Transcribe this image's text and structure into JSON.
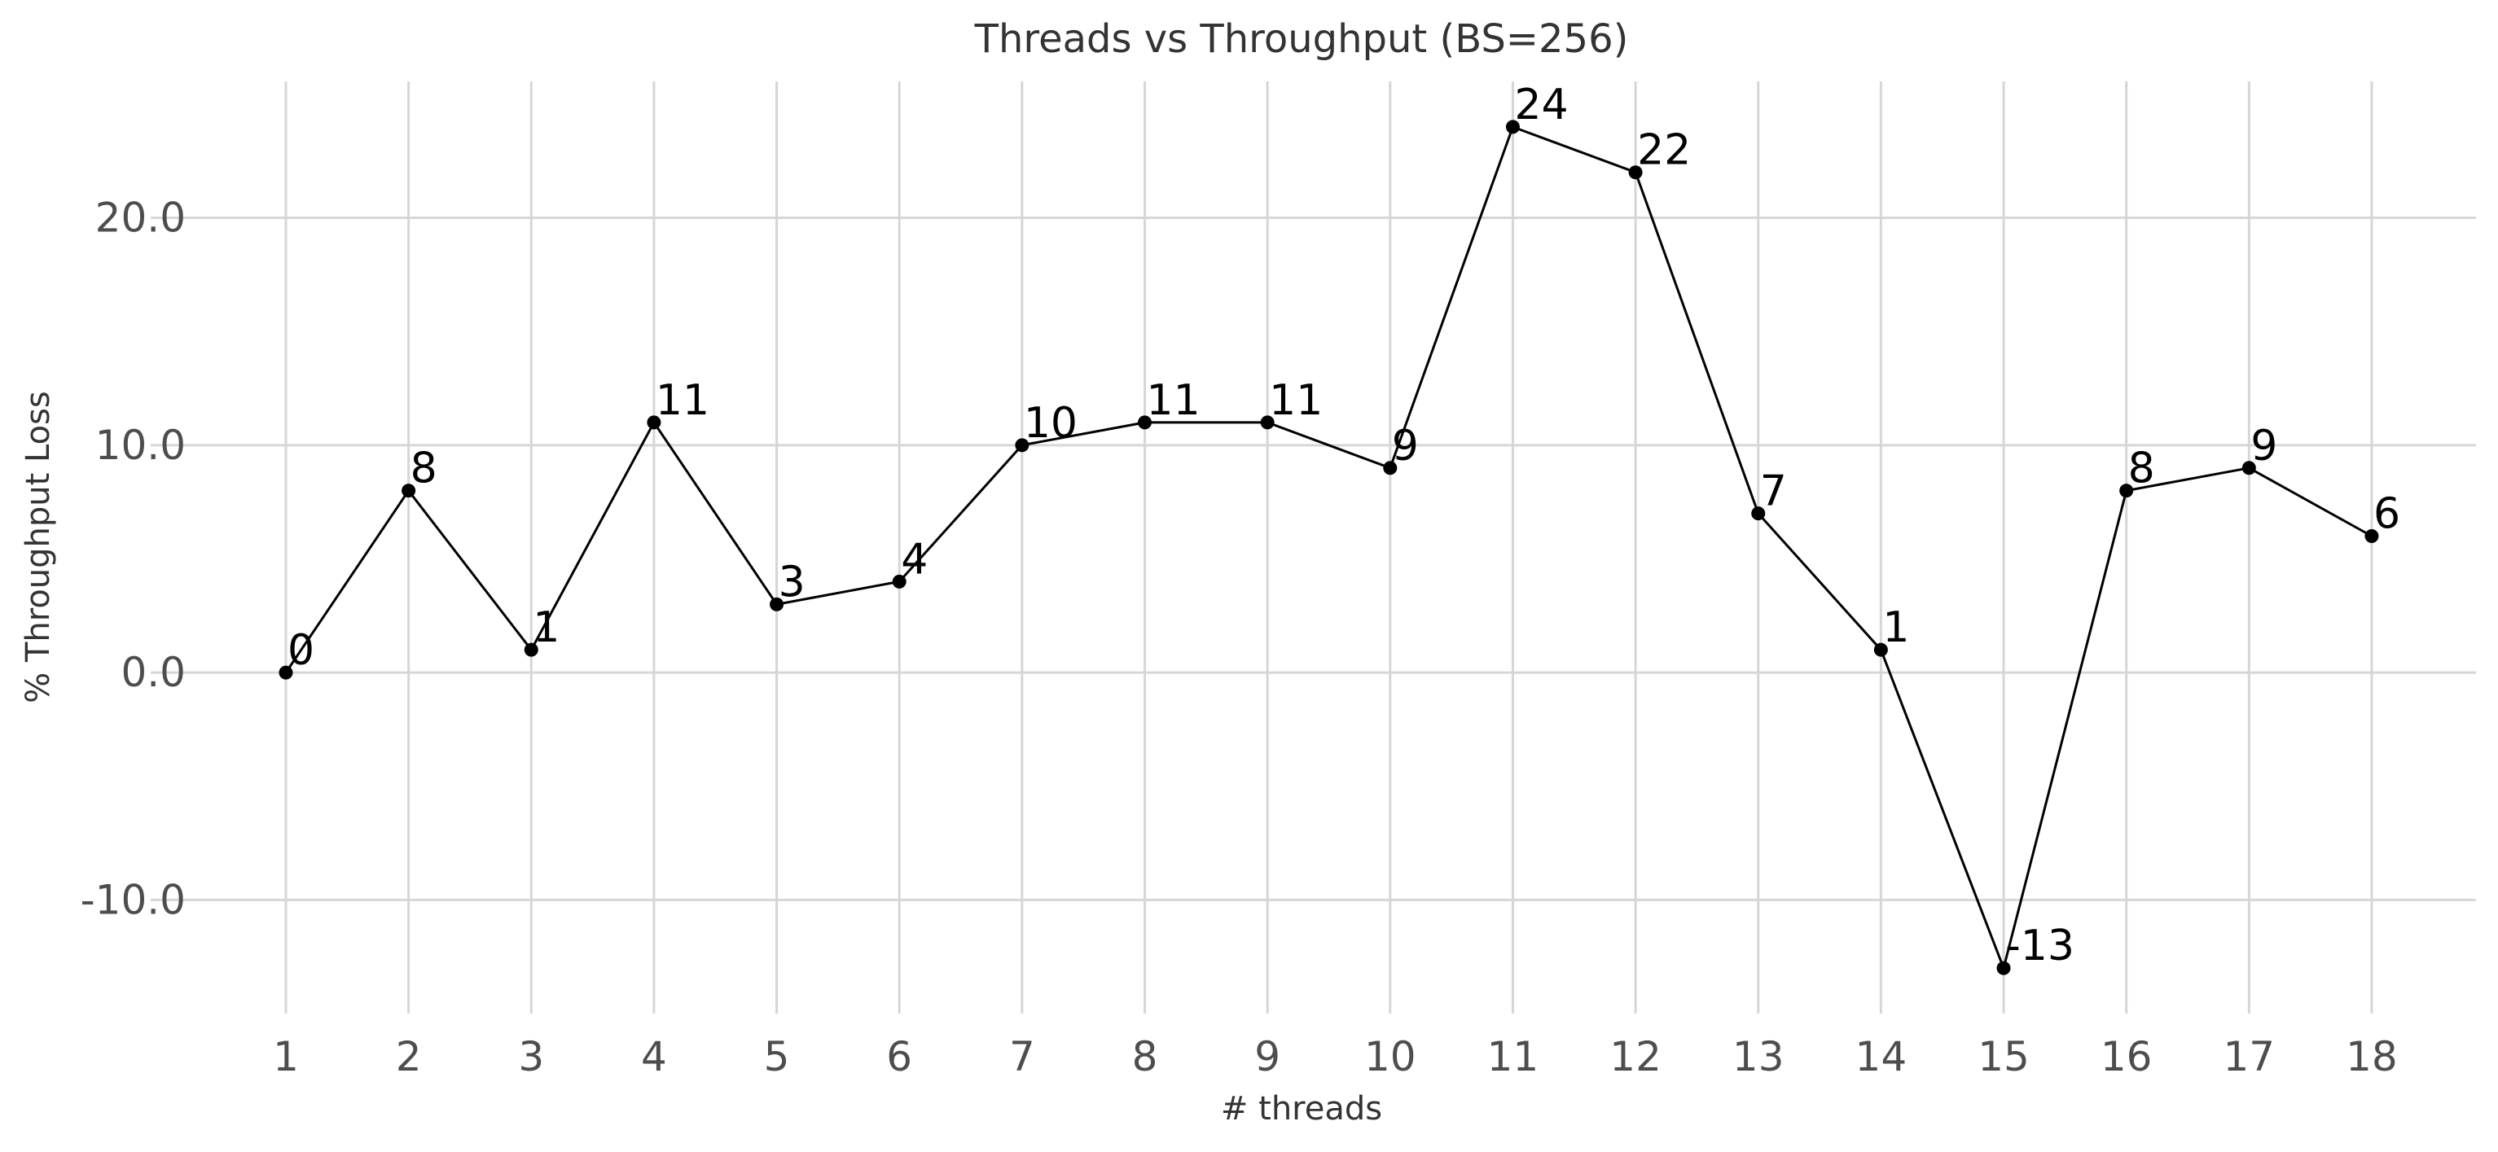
{
  "chart_data": {
    "type": "line",
    "title": "Threads vs Throughput (BS=256)",
    "xlabel": "# threads",
    "ylabel": "% Throughput Loss",
    "x": [
      1,
      2,
      3,
      4,
      5,
      6,
      7,
      8,
      9,
      10,
      11,
      12,
      13,
      14,
      15,
      16,
      17,
      18
    ],
    "x_tick_labels": [
      "1",
      "2",
      "3",
      "4",
      "5",
      "6",
      "7",
      "8",
      "9",
      "10",
      "11",
      "12",
      "13",
      "14",
      "15",
      "16",
      "17",
      "18"
    ],
    "y_ticks": [
      -10,
      0,
      10,
      20
    ],
    "y_tick_labels": [
      "-10.0",
      "0.0",
      "10.0",
      "20.0"
    ],
    "series": [
      {
        "values": [
          0,
          8,
          1,
          11,
          3,
          4,
          10,
          11,
          11,
          9,
          24,
          22,
          7,
          1,
          -13,
          8,
          9,
          6
        ],
        "labels": [
          "0",
          "8",
          "1",
          "11",
          "3",
          "4",
          "10",
          "11",
          "11",
          "9",
          "24",
          "22",
          "7",
          "1",
          "-13",
          "8",
          "9",
          "6"
        ],
        "color": "#000000"
      }
    ],
    "xlim": [
      0.25,
      18.85
    ],
    "ylim": [
      -15.0,
      26.0
    ],
    "grid": true,
    "legend": "none",
    "colors": {
      "line": "#000000",
      "grid": "#d6d6d6",
      "tick_text": "#4d4d4d",
      "title_text": "#333333"
    }
  }
}
